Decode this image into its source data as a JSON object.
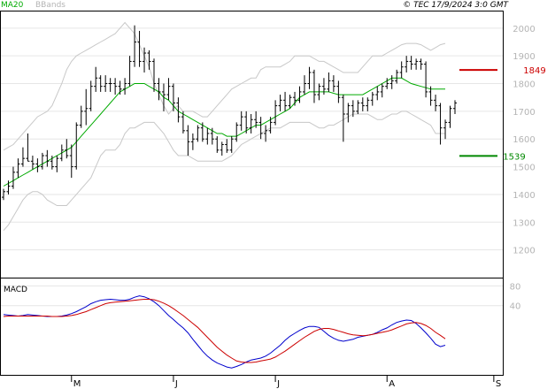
{
  "header": {
    "ma_label": "MA20",
    "bb_label": "BBands",
    "source": "© TEC 17/9/2024 3:0 GMT"
  },
  "colors": {
    "ma": "#00aa00",
    "bbands": "#c8c8c8",
    "candles": "#000000",
    "resistance": "#cc0000",
    "support": "#008800",
    "macd": "#0000cc",
    "signal": "#cc0000",
    "grid": "#e6e6e6",
    "panel_border": "#000000"
  },
  "chart_data": [
    {
      "type": "candlestick",
      "title": "",
      "ylim": [
        1100,
        2060
      ],
      "y_ticks": [
        "2000",
        "1900",
        "1800",
        "1700",
        "1600",
        "1500",
        "1400",
        "1300",
        "1200"
      ],
      "x_ticks": [
        {
          "label": "M",
          "index": 14
        },
        {
          "label": "J",
          "index": 35
        },
        {
          "label": "J",
          "index": 56
        },
        {
          "label": "A",
          "index": 79
        },
        {
          "label": "S",
          "index": 101
        }
      ],
      "grid": true,
      "ohlc": [
        [
          1390,
          1420,
          1380,
          1410
        ],
        [
          1410,
          1450,
          1400,
          1430
        ],
        [
          1430,
          1500,
          1420,
          1480
        ],
        [
          1480,
          1530,
          1460,
          1510
        ],
        [
          1510,
          1570,
          1500,
          1530
        ],
        [
          1530,
          1620,
          1520,
          1520
        ],
        [
          1520,
          1540,
          1490,
          1510
        ],
        [
          1510,
          1530,
          1480,
          1500
        ],
        [
          1500,
          1550,
          1490,
          1540
        ],
        [
          1540,
          1560,
          1500,
          1520
        ],
        [
          1520,
          1540,
          1490,
          1500
        ],
        [
          1500,
          1540,
          1480,
          1530
        ],
        [
          1530,
          1580,
          1520,
          1560
        ],
        [
          1560,
          1600,
          1530,
          1540
        ],
        [
          1540,
          1580,
          1460,
          1500
        ],
        [
          1500,
          1660,
          1490,
          1650
        ],
        [
          1650,
          1720,
          1640,
          1700
        ],
        [
          1700,
          1780,
          1650,
          1710
        ],
        [
          1710,
          1810,
          1700,
          1790
        ],
        [
          1790,
          1860,
          1770,
          1820
        ],
        [
          1820,
          1830,
          1770,
          1790
        ],
        [
          1790,
          1830,
          1770,
          1800
        ],
        [
          1800,
          1820,
          1770,
          1800
        ],
        [
          1800,
          1820,
          1760,
          1790
        ],
        [
          1790,
          1810,
          1760,
          1780
        ],
        [
          1780,
          1820,
          1760,
          1800
        ],
        [
          1800,
          1900,
          1790,
          1880
        ],
        [
          1880,
          2010,
          1860,
          1950
        ],
        [
          1950,
          1990,
          1860,
          1880
        ],
        [
          1880,
          1930,
          1840,
          1910
        ],
        [
          1910,
          1920,
          1850,
          1880
        ],
        [
          1880,
          1890,
          1770,
          1800
        ],
        [
          1800,
          1820,
          1740,
          1770
        ],
        [
          1770,
          1800,
          1700,
          1760
        ],
        [
          1760,
          1820,
          1740,
          1790
        ],
        [
          1790,
          1800,
          1700,
          1730
        ],
        [
          1730,
          1750,
          1660,
          1680
        ],
        [
          1680,
          1700,
          1620,
          1630
        ],
        [
          1630,
          1650,
          1540,
          1590
        ],
        [
          1590,
          1620,
          1560,
          1600
        ],
        [
          1600,
          1650,
          1590,
          1640
        ],
        [
          1640,
          1660,
          1590,
          1600
        ],
        [
          1600,
          1640,
          1580,
          1620
        ],
        [
          1620,
          1640,
          1580,
          1600
        ],
        [
          1600,
          1610,
          1550,
          1560
        ],
        [
          1560,
          1590,
          1540,
          1580
        ],
        [
          1580,
          1600,
          1550,
          1560
        ],
        [
          1560,
          1610,
          1550,
          1600
        ],
        [
          1600,
          1660,
          1590,
          1650
        ],
        [
          1650,
          1700,
          1630,
          1680
        ],
        [
          1680,
          1700,
          1620,
          1640
        ],
        [
          1640,
          1690,
          1620,
          1670
        ],
        [
          1670,
          1700,
          1640,
          1660
        ],
        [
          1660,
          1680,
          1600,
          1620
        ],
        [
          1620,
          1650,
          1590,
          1630
        ],
        [
          1630,
          1680,
          1620,
          1660
        ],
        [
          1660,
          1740,
          1650,
          1720
        ],
        [
          1720,
          1760,
          1700,
          1740
        ],
        [
          1740,
          1770,
          1700,
          1720
        ],
        [
          1720,
          1760,
          1710,
          1750
        ],
        [
          1750,
          1770,
          1720,
          1740
        ],
        [
          1740,
          1790,
          1730,
          1770
        ],
        [
          1770,
          1830,
          1760,
          1800
        ],
        [
          1800,
          1860,
          1780,
          1840
        ],
        [
          1840,
          1850,
          1730,
          1760
        ],
        [
          1760,
          1800,
          1740,
          1790
        ],
        [
          1790,
          1820,
          1760,
          1780
        ],
        [
          1780,
          1840,
          1770,
          1810
        ],
        [
          1810,
          1830,
          1770,
          1790
        ],
        [
          1790,
          1810,
          1730,
          1750
        ],
        [
          1750,
          1760,
          1590,
          1690
        ],
        [
          1690,
          1730,
          1660,
          1720
        ],
        [
          1720,
          1740,
          1680,
          1700
        ],
        [
          1700,
          1740,
          1690,
          1730
        ],
        [
          1730,
          1750,
          1700,
          1720
        ],
        [
          1720,
          1750,
          1700,
          1740
        ],
        [
          1740,
          1770,
          1720,
          1760
        ],
        [
          1760,
          1790,
          1740,
          1770
        ],
        [
          1770,
          1800,
          1750,
          1790
        ],
        [
          1790,
          1820,
          1780,
          1800
        ],
        [
          1800,
          1830,
          1780,
          1810
        ],
        [
          1810,
          1850,
          1800,
          1840
        ],
        [
          1840,
          1880,
          1820,
          1860
        ],
        [
          1860,
          1900,
          1840,
          1880
        ],
        [
          1880,
          1900,
          1850,
          1870
        ],
        [
          1870,
          1890,
          1850,
          1880
        ],
        [
          1880,
          1890,
          1850,
          1870
        ],
        [
          1870,
          1880,
          1750,
          1770
        ],
        [
          1770,
          1790,
          1720,
          1740
        ],
        [
          1740,
          1760,
          1700,
          1720
        ],
        [
          1720,
          1730,
          1580,
          1640
        ],
        [
          1640,
          1670,
          1600,
          1660
        ],
        [
          1660,
          1720,
          1640,
          1710
        ],
        [
          1710,
          1740,
          1690,
          1730
        ]
      ],
      "ma20": [
        1430,
        1440,
        1450,
        1460,
        1470,
        1480,
        1490,
        1500,
        1510,
        1520,
        1530,
        1540,
        1550,
        1560,
        1570,
        1590,
        1610,
        1630,
        1650,
        1670,
        1690,
        1710,
        1730,
        1750,
        1770,
        1780,
        1790,
        1800,
        1800,
        1800,
        1790,
        1780,
        1770,
        1750,
        1740,
        1720,
        1700,
        1690,
        1680,
        1670,
        1660,
        1650,
        1640,
        1630,
        1620,
        1620,
        1610,
        1610,
        1610,
        1620,
        1630,
        1640,
        1650,
        1650,
        1660,
        1670,
        1680,
        1690,
        1700,
        1710,
        1730,
        1750,
        1760,
        1770,
        1770,
        1770,
        1770,
        1770,
        1765,
        1760,
        1760,
        1760,
        1760,
        1760,
        1760,
        1770,
        1780,
        1790,
        1800,
        1810,
        1820,
        1820,
        1820,
        1810,
        1800,
        1795,
        1790,
        1785,
        1780,
        1780,
        1780,
        1780
      ],
      "bb_upper": [
        1560,
        1570,
        1580,
        1600,
        1620,
        1640,
        1660,
        1680,
        1690,
        1700,
        1720,
        1760,
        1800,
        1850,
        1880,
        1900,
        1910,
        1920,
        1930,
        1940,
        1950,
        1960,
        1970,
        1980,
        2000,
        2020,
        2000,
        1980,
        1940,
        1900,
        1860,
        1800,
        1760,
        1720,
        1690,
        1710,
        1720,
        1700,
        1700,
        1700,
        1690,
        1680,
        1680,
        1700,
        1720,
        1740,
        1760,
        1780,
        1790,
        1800,
        1810,
        1820,
        1820,
        1850,
        1860,
        1860,
        1860,
        1860,
        1870,
        1880,
        1900,
        1900,
        1900,
        1900,
        1890,
        1880,
        1880,
        1870,
        1860,
        1850,
        1840,
        1840,
        1840,
        1840,
        1860,
        1880,
        1900,
        1900,
        1900,
        1910,
        1920,
        1930,
        1940,
        1945,
        1945,
        1945,
        1940,
        1930,
        1920,
        1930,
        1940,
        1945
      ],
      "bb_lower": [
        1270,
        1290,
        1320,
        1350,
        1380,
        1400,
        1410,
        1410,
        1400,
        1380,
        1370,
        1360,
        1360,
        1360,
        1380,
        1400,
        1420,
        1440,
        1460,
        1500,
        1540,
        1560,
        1560,
        1560,
        1580,
        1620,
        1640,
        1640,
        1650,
        1660,
        1660,
        1660,
        1640,
        1620,
        1590,
        1560,
        1540,
        1540,
        1540,
        1530,
        1520,
        1520,
        1520,
        1520,
        1520,
        1520,
        1530,
        1540,
        1560,
        1580,
        1590,
        1600,
        1610,
        1620,
        1630,
        1640,
        1640,
        1640,
        1650,
        1660,
        1660,
        1660,
        1660,
        1660,
        1650,
        1640,
        1640,
        1650,
        1650,
        1660,
        1670,
        1680,
        1690,
        1690,
        1690,
        1690,
        1680,
        1670,
        1670,
        1680,
        1690,
        1690,
        1700,
        1700,
        1690,
        1680,
        1670,
        1660,
        1650,
        1620,
        1620,
        1620
      ],
      "resistance": {
        "label": "1849",
        "value": 1849
      },
      "support": {
        "label": "1539",
        "value": 1539
      }
    },
    {
      "type": "line",
      "title": "MACD",
      "ylim": [
        -100,
        95
      ],
      "y_ticks": [
        "80",
        "40"
      ],
      "series": [
        {
          "values": [
            22,
            21,
            20,
            19,
            20,
            22,
            21,
            20,
            19,
            18,
            18,
            18,
            19,
            21,
            24,
            28,
            33,
            38,
            44,
            48,
            51,
            52,
            53,
            52,
            51,
            51,
            53,
            57,
            60,
            58,
            54,
            48,
            40,
            30,
            20,
            12,
            3,
            -5,
            -15,
            -28,
            -40,
            -52,
            -62,
            -70,
            -76,
            -80,
            -84,
            -86,
            -83,
            -79,
            -74,
            -70,
            -68,
            -66,
            -62,
            -56,
            -48,
            -40,
            -30,
            -22,
            -16,
            -10,
            -5,
            -2,
            -2,
            -4,
            -12,
            -20,
            -26,
            -30,
            -32,
            -30,
            -28,
            -24,
            -22,
            -20,
            -18,
            -14,
            -9,
            -5,
            1,
            6,
            9,
            11,
            10,
            4,
            -5,
            -15,
            -26,
            -38,
            -43,
            -40
          ]
        },
        {
          "values": [
            18,
            19,
            19,
            19,
            19,
            19,
            19,
            19,
            19,
            19,
            18,
            18,
            18,
            19,
            20,
            22,
            25,
            28,
            32,
            36,
            40,
            44,
            46,
            47,
            48,
            49,
            50,
            51,
            52,
            53,
            53,
            52,
            49,
            45,
            40,
            34,
            27,
            20,
            12,
            4,
            -4,
            -14,
            -24,
            -34,
            -44,
            -52,
            -60,
            -66,
            -72,
            -74,
            -75,
            -75,
            -74,
            -72,
            -70,
            -68,
            -64,
            -58,
            -52,
            -45,
            -38,
            -31,
            -24,
            -18,
            -12,
            -8,
            -6,
            -6,
            -8,
            -11,
            -14,
            -17,
            -19,
            -20,
            -21,
            -20,
            -18,
            -16,
            -14,
            -12,
            -9,
            -5,
            -1,
            3,
            5,
            6,
            4,
            0,
            -6,
            -14,
            -20,
            -27
          ]
        }
      ]
    }
  ]
}
